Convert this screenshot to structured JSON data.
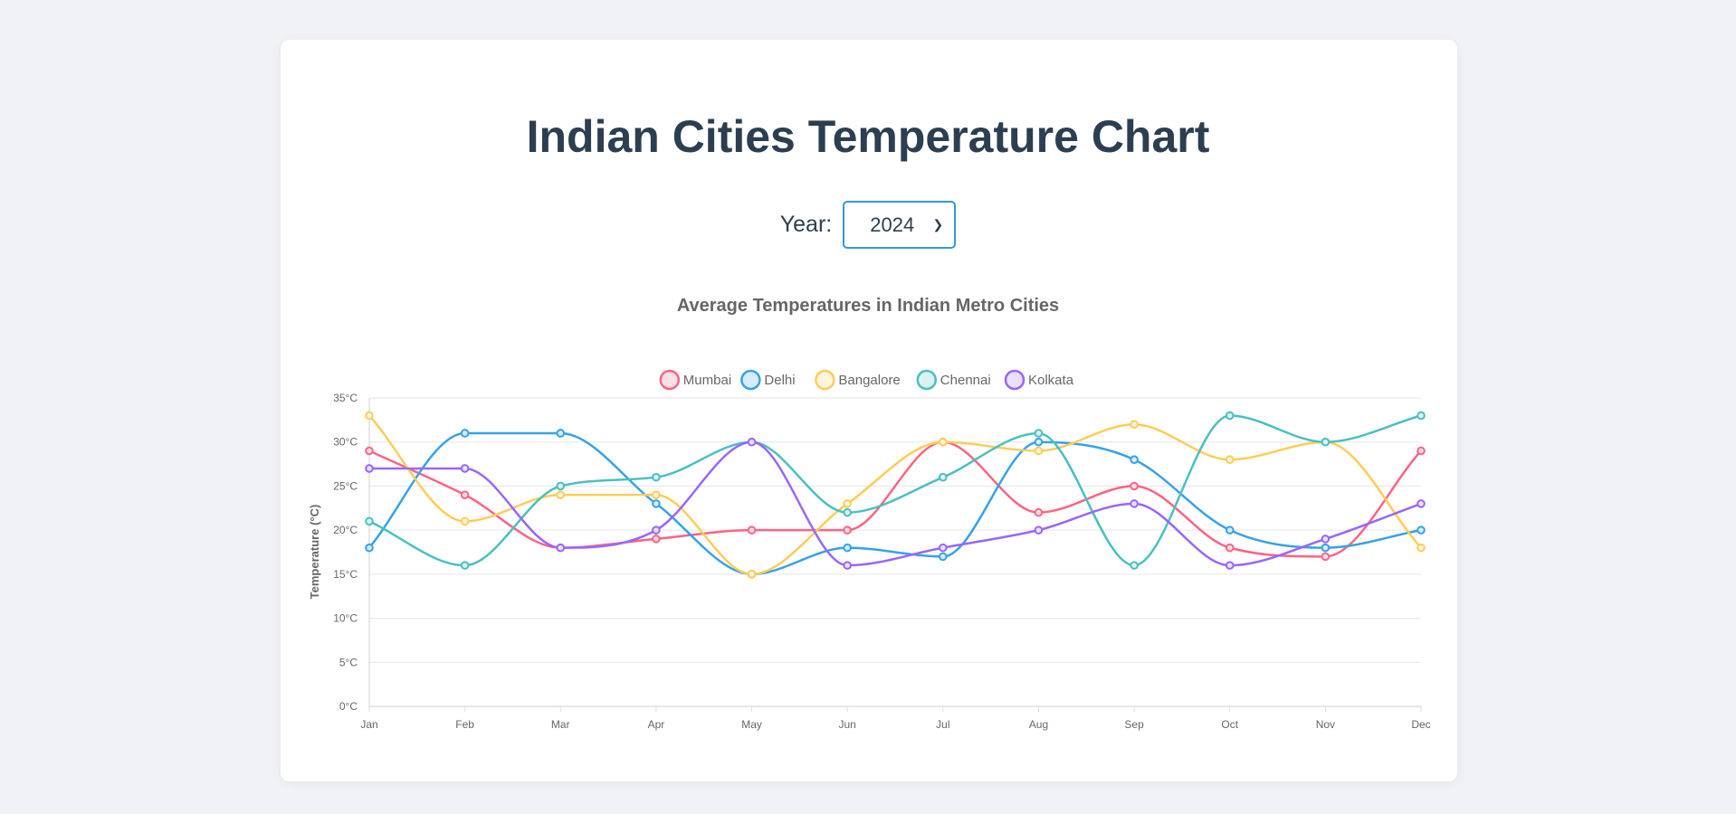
{
  "page": {
    "title": "Indian Cities Temperature Chart",
    "year_label": "Year:",
    "year_selected": "2024"
  },
  "chart_data": {
    "type": "line",
    "title": "Average Temperatures in Indian Metro Cities",
    "ylabel": "Temperature (°C)",
    "xlabel": "",
    "ylim": [
      0,
      35
    ],
    "ytick_step": 5,
    "ytick_suffix": "°C",
    "grid": true,
    "legend_position": "top",
    "categories": [
      "Jan",
      "Feb",
      "Mar",
      "Apr",
      "May",
      "Jun",
      "Jul",
      "Aug",
      "Sep",
      "Oct",
      "Nov",
      "Dec"
    ],
    "series": [
      {
        "name": "Mumbai",
        "color": "#ff6384",
        "fill": "#ffe0e6",
        "values": [
          29,
          24,
          18,
          19,
          20,
          20,
          30,
          22,
          25,
          18,
          17,
          29
        ]
      },
      {
        "name": "Delhi",
        "color": "#36a2eb",
        "fill": "#d7ecfb",
        "values": [
          18,
          31,
          31,
          23,
          15,
          18,
          17,
          30,
          28,
          20,
          18,
          20
        ]
      },
      {
        "name": "Bangalore",
        "color": "#ffcd56",
        "fill": "#fff5dd",
        "values": [
          33,
          21,
          24,
          24,
          15,
          23,
          30,
          29,
          32,
          28,
          30,
          18
        ]
      },
      {
        "name": "Chennai",
        "color": "#4bc0c0",
        "fill": "#dbf2f2",
        "values": [
          21,
          16,
          25,
          26,
          30,
          22,
          26,
          31,
          16,
          33,
          30,
          33
        ]
      },
      {
        "name": "Kolkata",
        "color": "#9966ff",
        "fill": "#ebe0ff",
        "values": [
          27,
          27,
          18,
          20,
          30,
          16,
          18,
          20,
          23,
          16,
          19,
          23
        ]
      }
    ]
  }
}
